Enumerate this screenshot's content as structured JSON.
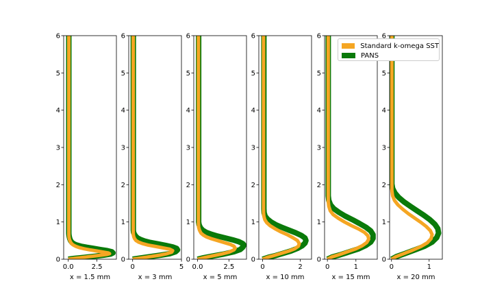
{
  "chart_data": {
    "type": "line",
    "y_ticks": [
      0,
      1,
      2,
      3,
      4,
      5,
      6
    ],
    "ylim": [
      0,
      6
    ],
    "grid": false,
    "legend_placement": "top-right",
    "colors": {
      "sst": "#f5a623",
      "pans": "#0a7a0a"
    },
    "legend": [
      {
        "name": "Standard k-omega SST",
        "color": "#f5a623"
      },
      {
        "name": "PANS",
        "color": "#0a7a0a"
      }
    ],
    "panels": [
      {
        "xlabel": "x = 1.5 mm",
        "xlim": [
          -0.4,
          4.2
        ],
        "x_ticks": [
          "0.0",
          "2.5"
        ],
        "x_tick_values": [
          0,
          2.5
        ],
        "series": [
          {
            "name": "Standard k-omega SST",
            "y": [
              0,
              0.02,
              0.05,
              0.08,
              0.11,
              0.13,
              0.15,
              0.17,
              0.19,
              0.22,
              0.25,
              0.28,
              0.31,
              0.34,
              0.37,
              0.4,
              0.45,
              0.5,
              0.55,
              0.6,
              0.65,
              6
            ],
            "x": [
              0,
              0.5,
              1.3,
              2.1,
              2.9,
              3.4,
              3.6,
              3.5,
              3.1,
              2.5,
              1.9,
              1.4,
              1.0,
              0.7,
              0.5,
              0.35,
              0.22,
              0.14,
              0.09,
              0.06,
              0.05,
              0.05
            ]
          },
          {
            "name": "PANS",
            "y": [
              0,
              0.02,
              0.05,
              0.08,
              0.11,
              0.14,
              0.17,
              0.2,
              0.23,
              0.26,
              0.29,
              0.32,
              0.35,
              0.38,
              0.41,
              0.45,
              0.5,
              0.55,
              0.6,
              0.65,
              0.7,
              6
            ],
            "x": [
              0,
              0.5,
              1.4,
              2.3,
              3.1,
              3.7,
              3.9,
              3.8,
              3.4,
              2.8,
              2.2,
              1.6,
              1.1,
              0.75,
              0.5,
              0.32,
              0.2,
              0.13,
              0.09,
              0.06,
              0.05,
              0.05
            ]
          }
        ]
      },
      {
        "xlabel": "x = 3 mm",
        "xlim": [
          -0.4,
          5
        ],
        "x_ticks": [
          "0",
          "5"
        ],
        "x_tick_values": [
          0,
          5
        ],
        "series": [
          {
            "name": "Standard k-omega SST",
            "y": [
              0,
              0.03,
              0.07,
              0.11,
              0.15,
              0.19,
              0.23,
              0.27,
              0.3,
              0.34,
              0.38,
              0.42,
              0.46,
              0.5,
              0.55,
              0.6,
              0.65,
              0.7,
              6
            ],
            "x": [
              0,
              0.8,
              1.8,
              2.8,
              3.5,
              4.0,
              4.1,
              3.8,
              3.2,
              2.4,
              1.6,
              1.0,
              0.6,
              0.35,
              0.2,
              0.12,
              0.08,
              0.06,
              0.06
            ]
          },
          {
            "name": "PANS",
            "y": [
              0,
              0.03,
              0.07,
              0.11,
              0.15,
              0.2,
              0.25,
              0.29,
              0.33,
              0.37,
              0.41,
              0.45,
              0.49,
              0.53,
              0.57,
              0.62,
              0.67,
              0.72,
              0.78,
              6
            ],
            "x": [
              0,
              0.7,
              1.8,
              2.9,
              3.8,
              4.4,
              4.6,
              4.5,
              4.1,
              3.4,
              2.6,
              1.8,
              1.2,
              0.8,
              0.5,
              0.3,
              0.18,
              0.1,
              0.07,
              0.07
            ]
          }
        ]
      },
      {
        "xlabel": "x = 5 mm",
        "xlim": [
          -0.3,
          3.9
        ],
        "x_ticks": [
          "0.0",
          "2.5"
        ],
        "x_tick_values": [
          0,
          2.5
        ],
        "series": [
          {
            "name": "Standard k-omega SST",
            "y": [
              0,
              0.04,
              0.09,
              0.14,
              0.19,
              0.25,
              0.3,
              0.35,
              0.4,
              0.45,
              0.5,
              0.55,
              0.6,
              0.65,
              0.7,
              0.78,
              0.86,
              0.95,
              6
            ],
            "x": [
              0,
              0.5,
              1.2,
              1.9,
              2.5,
              2.9,
              3.0,
              2.9,
              2.6,
              2.1,
              1.6,
              1.1,
              0.7,
              0.45,
              0.28,
              0.15,
              0.09,
              0.07,
              0.07
            ]
          },
          {
            "name": "PANS",
            "y": [
              0,
              0.04,
              0.09,
              0.14,
              0.2,
              0.26,
              0.32,
              0.38,
              0.42,
              0.47,
              0.52,
              0.57,
              0.62,
              0.67,
              0.72,
              0.78,
              0.85,
              0.93,
              1.0,
              6
            ],
            "x": [
              0,
              0.5,
              1.3,
              2.1,
              2.9,
              3.4,
              3.6,
              3.7,
              3.6,
              3.3,
              2.8,
              2.2,
              1.6,
              1.1,
              0.7,
              0.4,
              0.22,
              0.12,
              0.09,
              0.09
            ]
          }
        ]
      },
      {
        "xlabel": "x = 10 mm",
        "xlim": [
          -0.2,
          2.6
        ],
        "x_ticks": [
          "0",
          "2"
        ],
        "x_tick_values": [
          0,
          2
        ],
        "series": [
          {
            "name": "Standard k-omega SST",
            "y": [
              0,
              0.05,
              0.1,
              0.16,
              0.22,
              0.28,
              0.35,
              0.42,
              0.5,
              0.58,
              0.66,
              0.74,
              0.82,
              0.9,
              0.98,
              1.06,
              1.15,
              1.25,
              6
            ],
            "x": [
              0,
              0.25,
              0.6,
              1.0,
              1.4,
              1.7,
              1.9,
              1.95,
              1.85,
              1.6,
              1.3,
              0.95,
              0.65,
              0.4,
              0.22,
              0.12,
              0.07,
              0.05,
              0.05
            ]
          },
          {
            "name": "PANS",
            "y": [
              0,
              0.05,
              0.1,
              0.16,
              0.22,
              0.29,
              0.36,
              0.43,
              0.5,
              0.57,
              0.64,
              0.71,
              0.78,
              0.85,
              0.92,
              1.0,
              1.08,
              1.16,
              1.25,
              1.35,
              6
            ],
            "x": [
              0,
              0.3,
              0.7,
              1.1,
              1.5,
              1.85,
              2.1,
              2.25,
              2.3,
              2.25,
              2.05,
              1.75,
              1.4,
              1.05,
              0.72,
              0.45,
              0.25,
              0.13,
              0.08,
              0.07,
              0.07
            ]
          }
        ]
      },
      {
        "xlabel": "x = 15 mm",
        "xlim": [
          -0.1,
          1.75
        ],
        "x_ticks": [
          "0",
          "1"
        ],
        "x_tick_values": [
          0,
          1
        ],
        "series": [
          {
            "name": "Standard k-omega SST",
            "y": [
              0,
              0.06,
              0.12,
              0.2,
              0.28,
              0.36,
              0.45,
              0.54,
              0.63,
              0.72,
              0.81,
              0.9,
              1.0,
              1.1,
              1.2,
              1.3,
              1.42,
              1.55,
              6
            ],
            "x": [
              0,
              0.15,
              0.4,
              0.7,
              1.0,
              1.22,
              1.38,
              1.45,
              1.42,
              1.3,
              1.1,
              0.85,
              0.6,
              0.38,
              0.2,
              0.1,
              0.05,
              0.03,
              0.03
            ]
          },
          {
            "name": "PANS",
            "y": [
              0,
              0.06,
              0.12,
              0.2,
              0.28,
              0.37,
              0.46,
              0.56,
              0.66,
              0.76,
              0.86,
              0.96,
              1.06,
              1.16,
              1.26,
              1.36,
              1.46,
              1.58,
              1.7,
              6
            ],
            "x": [
              0,
              0.17,
              0.45,
              0.78,
              1.1,
              1.35,
              1.52,
              1.6,
              1.6,
              1.52,
              1.35,
              1.12,
              0.88,
              0.62,
              0.4,
              0.22,
              0.11,
              0.05,
              0.03,
              0.03
            ]
          }
        ]
      },
      {
        "xlabel": "x = 20 mm",
        "xlim": [
          -0.05,
          1.35
        ],
        "x_ticks": [
          "0",
          "1"
        ],
        "x_tick_values": [
          0,
          1
        ],
        "series": [
          {
            "name": "Standard k-omega SST",
            "y": [
              0,
              0.07,
              0.15,
              0.24,
              0.34,
              0.44,
              0.55,
              0.66,
              0.77,
              0.88,
              0.99,
              1.1,
              1.22,
              1.34,
              1.46,
              1.58,
              1.7,
              1.85,
              6
            ],
            "x": [
              0,
              0.12,
              0.32,
              0.55,
              0.78,
              0.95,
              1.05,
              1.08,
              1.03,
              0.92,
              0.78,
              0.62,
              0.45,
              0.3,
              0.17,
              0.08,
              0.03,
              0.01,
              0.01
            ]
          },
          {
            "name": "PANS",
            "y": [
              0,
              0.07,
              0.15,
              0.25,
              0.35,
              0.46,
              0.58,
              0.7,
              0.82,
              0.94,
              1.06,
              1.18,
              1.3,
              1.42,
              1.54,
              1.66,
              1.78,
              1.9,
              2.02,
              6
            ],
            "x": [
              0,
              0.13,
              0.35,
              0.62,
              0.88,
              1.08,
              1.2,
              1.25,
              1.23,
              1.15,
              1.02,
              0.86,
              0.68,
              0.5,
              0.33,
              0.19,
              0.09,
              0.03,
              0.01,
              0.01
            ]
          }
        ]
      }
    ]
  }
}
